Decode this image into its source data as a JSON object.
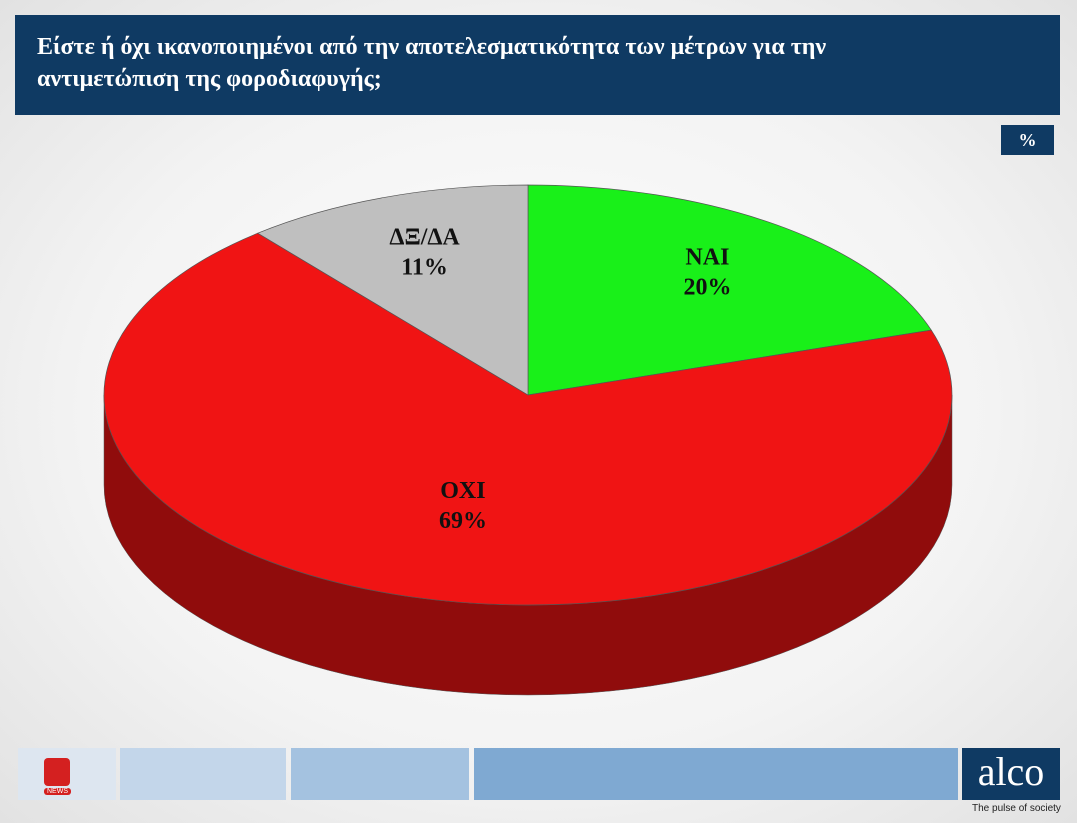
{
  "chart_data": {
    "type": "pie3d",
    "title": "Είστε ή όχι ικανοποιημένοι από την αποτελεσματικότητα των μέτρων για την αντιμετώπιση της φοροδιαφυγής;",
    "unit_badge": "%",
    "categories": [
      "ΝΑΙ",
      "ΟΧΙ",
      "ΔΞ/ΔΑ"
    ],
    "values": [
      20,
      69,
      11
    ],
    "value_labels": [
      "20%",
      "69%",
      "11%"
    ],
    "colors": [
      "#19f019",
      "#f01414",
      "#bfbfbf"
    ]
  },
  "footer": {
    "channel_badge": "NEWS",
    "brand": "alco",
    "tagline": "The pulse of society"
  }
}
